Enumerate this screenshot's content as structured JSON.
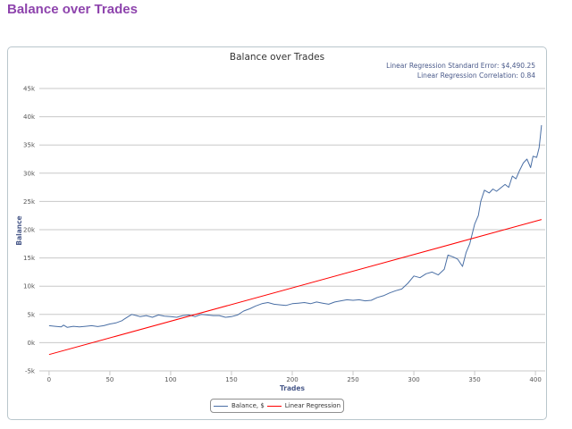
{
  "page": {
    "title": "Balance over Trades"
  },
  "colors": {
    "title": "#8e44ad",
    "balance": "#4a6fa5",
    "regression": "#ff0000",
    "axis_label": "#4a5a8a"
  },
  "chart_data": {
    "type": "line",
    "title": "Balance over Trades",
    "xlabel": "Trades",
    "ylabel": "Balance",
    "xlim": [
      -8,
      408
    ],
    "ylim": [
      -5000,
      45000
    ],
    "x_ticks": [
      0,
      50,
      100,
      150,
      200,
      250,
      300,
      350,
      400
    ],
    "x_tick_labels": [
      "0",
      "50",
      "100",
      "150",
      "200",
      "250",
      "300",
      "350",
      "400"
    ],
    "y_ticks": [
      -5000,
      0,
      5000,
      10000,
      15000,
      20000,
      25000,
      30000,
      35000,
      40000,
      45000
    ],
    "y_tick_labels": [
      "-5k",
      "0k",
      "5k",
      "10k",
      "15k",
      "20k",
      "25k",
      "30k",
      "35k",
      "40k",
      "45k"
    ],
    "grid": true,
    "legend": "bottom-center",
    "annotations": [
      "Linear Regression Standard Error: $4,490.25",
      "Linear Regression Correlation: 0.84"
    ],
    "series": [
      {
        "name": "Balance, $",
        "color": "#4a6fa5",
        "points": [
          [
            0,
            3000
          ],
          [
            5,
            2900
          ],
          [
            10,
            2800
          ],
          [
            12,
            3100
          ],
          [
            15,
            2700
          ],
          [
            20,
            2900
          ],
          [
            25,
            2800
          ],
          [
            30,
            2900
          ],
          [
            35,
            3000
          ],
          [
            40,
            2850
          ],
          [
            45,
            3000
          ],
          [
            50,
            3300
          ],
          [
            55,
            3500
          ],
          [
            60,
            3900
          ],
          [
            62,
            4200
          ],
          [
            65,
            4600
          ],
          [
            68,
            5000
          ],
          [
            72,
            4800
          ],
          [
            75,
            4600
          ],
          [
            80,
            4800
          ],
          [
            85,
            4500
          ],
          [
            90,
            4900
          ],
          [
            95,
            4700
          ],
          [
            100,
            4600
          ],
          [
            105,
            4500
          ],
          [
            110,
            4800
          ],
          [
            115,
            4900
          ],
          [
            120,
            4600
          ],
          [
            125,
            5000
          ],
          [
            130,
            4900
          ],
          [
            135,
            4800
          ],
          [
            140,
            4800
          ],
          [
            145,
            4500
          ],
          [
            150,
            4600
          ],
          [
            155,
            4900
          ],
          [
            160,
            5600
          ],
          [
            165,
            6000
          ],
          [
            170,
            6500
          ],
          [
            175,
            6900
          ],
          [
            180,
            7100
          ],
          [
            185,
            6800
          ],
          [
            190,
            6700
          ],
          [
            195,
            6600
          ],
          [
            200,
            6900
          ],
          [
            205,
            7000
          ],
          [
            210,
            7100
          ],
          [
            215,
            6900
          ],
          [
            220,
            7200
          ],
          [
            225,
            7000
          ],
          [
            230,
            6800
          ],
          [
            235,
            7200
          ],
          [
            240,
            7400
          ],
          [
            245,
            7600
          ],
          [
            250,
            7500
          ],
          [
            255,
            7600
          ],
          [
            260,
            7400
          ],
          [
            265,
            7500
          ],
          [
            270,
            8000
          ],
          [
            275,
            8300
          ],
          [
            280,
            8800
          ],
          [
            285,
            9200
          ],
          [
            290,
            9500
          ],
          [
            295,
            10500
          ],
          [
            300,
            11800
          ],
          [
            305,
            11500
          ],
          [
            310,
            12200
          ],
          [
            315,
            12500
          ],
          [
            320,
            12000
          ],
          [
            325,
            13000
          ],
          [
            328,
            15500
          ],
          [
            332,
            15200
          ],
          [
            336,
            14800
          ],
          [
            340,
            13500
          ],
          [
            343,
            16000
          ],
          [
            346,
            17500
          ],
          [
            350,
            21000
          ],
          [
            353,
            22500
          ],
          [
            355,
            25000
          ],
          [
            358,
            27000
          ],
          [
            362,
            26500
          ],
          [
            365,
            27200
          ],
          [
            368,
            26800
          ],
          [
            372,
            27500
          ],
          [
            375,
            28000
          ],
          [
            378,
            27500
          ],
          [
            381,
            29500
          ],
          [
            384,
            29000
          ],
          [
            387,
            30500
          ],
          [
            390,
            31800
          ],
          [
            393,
            32500
          ],
          [
            396,
            31000
          ],
          [
            398,
            33000
          ],
          [
            401,
            32800
          ],
          [
            403,
            34500
          ],
          [
            404,
            36500
          ],
          [
            405,
            38500
          ]
        ]
      },
      {
        "name": "Linear Regression",
        "color": "#ff0000",
        "points": [
          [
            0,
            -2100
          ],
          [
            405,
            21800
          ]
        ]
      }
    ]
  }
}
